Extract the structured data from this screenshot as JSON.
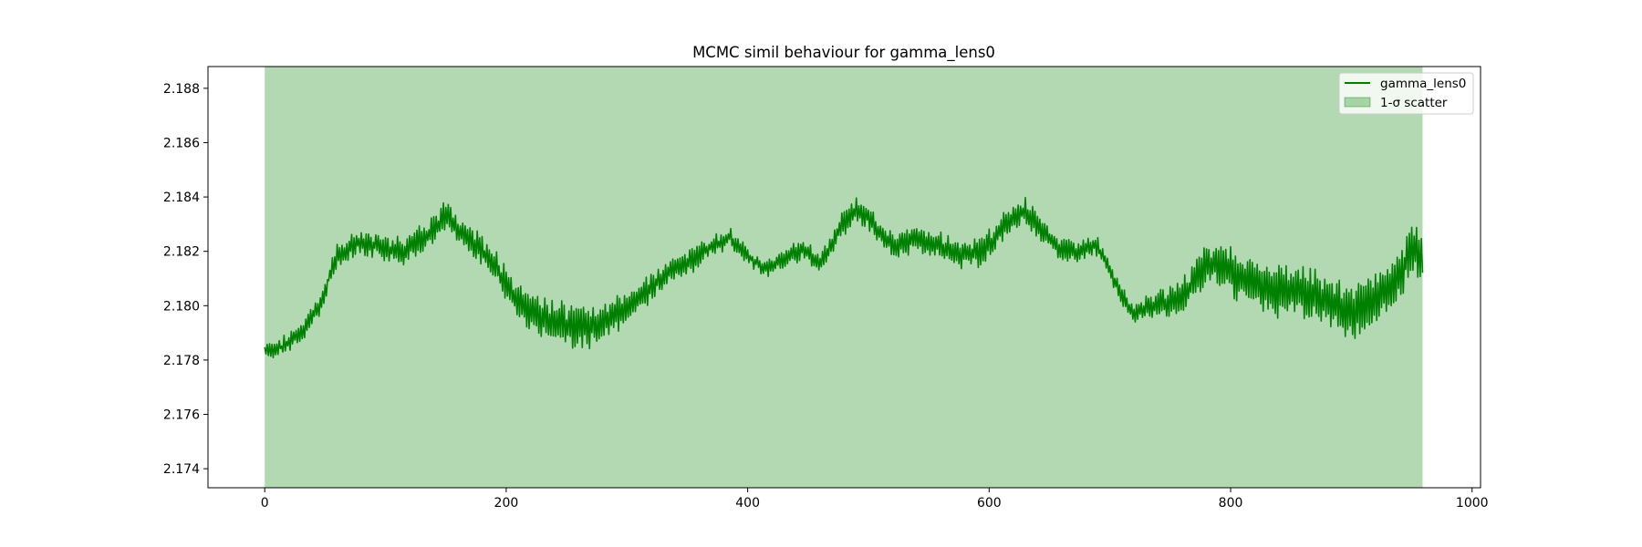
{
  "chart_data": {
    "type": "line",
    "title": "MCMC simil behaviour for gamma_lens0",
    "xlabel": "",
    "ylabel": "",
    "xlim": [
      -47,
      1007
    ],
    "ylim": [
      2.1733,
      2.1888
    ],
    "xticks": [
      0,
      200,
      400,
      600,
      800,
      1000
    ],
    "xtick_labels": [
      "0",
      "200",
      "400",
      "600",
      "800",
      "1000"
    ],
    "yticks": [
      2.174,
      2.176,
      2.178,
      2.18,
      2.182,
      2.184,
      2.186,
      2.188
    ],
    "ytick_labels": [
      "2.174",
      "2.176",
      "2.178",
      "2.180",
      "2.182",
      "2.184",
      "2.186",
      "2.188"
    ],
    "grid": false,
    "legend_position": "top-right",
    "n_samples": 960,
    "series": [
      {
        "name": "gamma_lens0",
        "kind": "line",
        "color": "#008000",
        "trend": [
          [
            0,
            2.1783
          ],
          [
            15,
            2.1785
          ],
          [
            30,
            2.179
          ],
          [
            45,
            2.18
          ],
          [
            60,
            2.1818
          ],
          [
            75,
            2.1823
          ],
          [
            95,
            2.1822
          ],
          [
            115,
            2.182
          ],
          [
            135,
            2.1826
          ],
          [
            150,
            2.1833
          ],
          [
            165,
            2.1826
          ],
          [
            185,
            2.1818
          ],
          [
            200,
            2.1808
          ],
          [
            215,
            2.1798
          ],
          [
            235,
            2.1795
          ],
          [
            255,
            2.1792
          ],
          [
            275,
            2.1793
          ],
          [
            295,
            2.1798
          ],
          [
            315,
            2.1805
          ],
          [
            335,
            2.1813
          ],
          [
            355,
            2.1817
          ],
          [
            370,
            2.1822
          ],
          [
            385,
            2.1825
          ],
          [
            400,
            2.1818
          ],
          [
            415,
            2.1813
          ],
          [
            430,
            2.1817
          ],
          [
            445,
            2.1821
          ],
          [
            460,
            2.1815
          ],
          [
            475,
            2.1828
          ],
          [
            490,
            2.1835
          ],
          [
            505,
            2.183
          ],
          [
            520,
            2.1822
          ],
          [
            540,
            2.1825
          ],
          [
            560,
            2.1822
          ],
          [
            580,
            2.1818
          ],
          [
            600,
            2.1822
          ],
          [
            615,
            2.183
          ],
          [
            630,
            2.1835
          ],
          [
            645,
            2.1827
          ],
          [
            660,
            2.182
          ],
          [
            675,
            2.182
          ],
          [
            690,
            2.1822
          ],
          [
            705,
            2.1808
          ],
          [
            720,
            2.1797
          ],
          [
            740,
            2.18
          ],
          [
            760,
            2.1803
          ],
          [
            780,
            2.1815
          ],
          [
            800,
            2.1813
          ],
          [
            820,
            2.1808
          ],
          [
            840,
            2.1805
          ],
          [
            860,
            2.1805
          ],
          [
            880,
            2.1803
          ],
          [
            900,
            2.1797
          ],
          [
            920,
            2.1803
          ],
          [
            940,
            2.181
          ],
          [
            950,
            2.1822
          ],
          [
            959,
            2.1818
          ]
        ],
        "oscillation": [
          [
            0,
            0.0003
          ],
          [
            60,
            0.0004
          ],
          [
            150,
            0.0005
          ],
          [
            200,
            0.0006
          ],
          [
            260,
            0.0009
          ],
          [
            320,
            0.0005
          ],
          [
            400,
            0.0003
          ],
          [
            470,
            0.0004
          ],
          [
            560,
            0.0005
          ],
          [
            620,
            0.0005
          ],
          [
            700,
            0.0003
          ],
          [
            760,
            0.0006
          ],
          [
            800,
            0.0009
          ],
          [
            850,
            0.0009
          ],
          [
            900,
            0.001
          ],
          [
            959,
            0.0009
          ]
        ]
      },
      {
        "name": "1-σ scatter",
        "kind": "band",
        "color": "#008000",
        "alpha": 0.3,
        "x_range": [
          0,
          959
        ],
        "lower": 2.1733,
        "upper": 2.1888
      }
    ]
  }
}
